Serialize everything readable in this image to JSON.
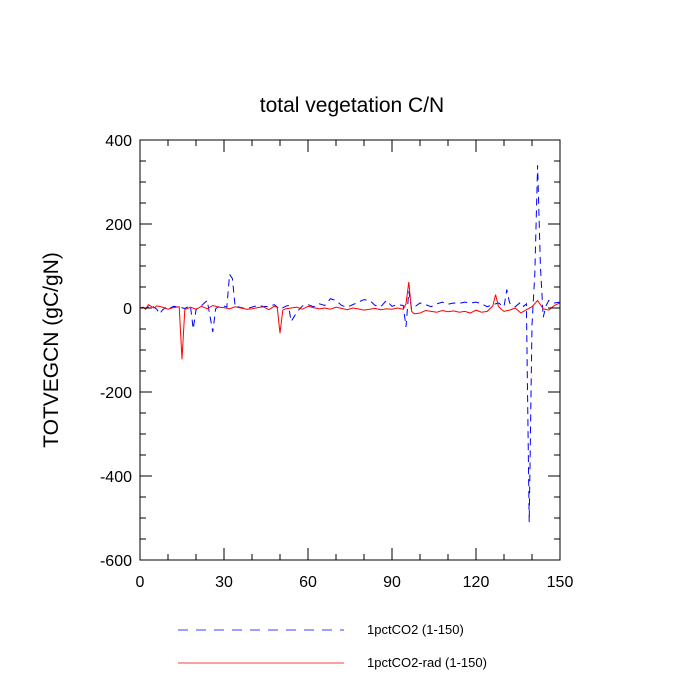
{
  "chart_data": {
    "type": "line",
    "title": "total vegetation C/N",
    "xlabel": "",
    "ylabel": "TOTVEGCN  (gC/gN)",
    "xlim": [
      0,
      150
    ],
    "ylim": [
      -600,
      400
    ],
    "xticks": [
      0,
      30,
      60,
      90,
      120,
      150
    ],
    "xtick_labels": [
      "0",
      "30",
      "60",
      "90",
      "120",
      "150"
    ],
    "yticks": [
      -600,
      -400,
      -200,
      0,
      200,
      400
    ],
    "ytick_labels": [
      "-600",
      "-400",
      "-200",
      "0",
      "200",
      "400"
    ],
    "grid": false,
    "legend_position": "bottom",
    "series": [
      {
        "name": "1pctCO2 (1-150)",
        "color": "#0000ff",
        "dash": "dashed",
        "x": [
          1,
          2,
          3,
          4,
          5,
          6,
          7,
          8,
          9,
          10,
          12,
          14,
          16,
          18,
          19,
          20,
          21,
          22,
          24,
          26,
          27,
          28,
          30,
          31,
          32,
          33,
          34,
          35,
          38,
          40,
          42,
          44,
          46,
          48,
          50,
          52,
          53,
          54,
          56,
          58,
          60,
          62,
          64,
          66,
          68,
          70,
          72,
          74,
          76,
          78,
          80,
          82,
          84,
          86,
          88,
          90,
          92,
          94,
          95,
          96,
          97,
          98,
          100,
          102,
          104,
          106,
          108,
          110,
          112,
          114,
          116,
          118,
          120,
          122,
          124,
          126,
          128,
          130,
          131,
          132,
          133,
          134,
          136,
          137,
          138,
          139,
          140,
          141,
          142,
          143,
          144,
          145,
          146,
          148,
          150
        ],
        "y": [
          2,
          -2,
          3,
          6,
          2,
          -3,
          -14,
          -5,
          1,
          -3,
          4,
          2,
          -1,
          6,
          -50,
          -5,
          3,
          6,
          18,
          -57,
          -2,
          3,
          5,
          2,
          80,
          70,
          2,
          3,
          -2,
          2,
          6,
          4,
          3,
          8,
          -3,
          4,
          6,
          -32,
          -10,
          5,
          8,
          3,
          10,
          6,
          22,
          18,
          6,
          2,
          8,
          14,
          20,
          18,
          6,
          3,
          18,
          4,
          8,
          6,
          -45,
          40,
          -3,
          2,
          12,
          8,
          3,
          10,
          14,
          9,
          12,
          11,
          14,
          12,
          14,
          10,
          3,
          8,
          12,
          3,
          44,
          12,
          8,
          3,
          14,
          4,
          10,
          -510,
          -40,
          80,
          340,
          100,
          -22,
          5,
          18,
          12,
          14
        ]
      },
      {
        "name": "1pctCO2-rad (1-150)",
        "color": "#ff0000",
        "dash": "solid",
        "x": [
          0,
          1,
          2,
          3,
          4,
          5,
          6,
          8,
          10,
          12,
          14,
          15,
          16,
          18,
          20,
          22,
          24,
          26,
          28,
          30,
          32,
          34,
          36,
          38,
          40,
          42,
          44,
          46,
          48,
          49,
          50,
          51,
          52,
          54,
          56,
          58,
          60,
          62,
          64,
          66,
          68,
          70,
          72,
          74,
          76,
          78,
          80,
          82,
          84,
          86,
          88,
          90,
          92,
          94,
          95,
          96,
          97,
          98,
          100,
          102,
          104,
          106,
          108,
          110,
          112,
          114,
          116,
          118,
          120,
          122,
          124,
          126,
          127,
          128,
          129,
          130,
          132,
          134,
          136,
          138,
          140,
          142,
          144,
          146,
          148,
          150
        ],
        "y": [
          0,
          2,
          -3,
          8,
          4,
          0,
          5,
          2,
          -3,
          1,
          3,
          -122,
          -4,
          2,
          -3,
          4,
          -2,
          6,
          2,
          1,
          -2,
          3,
          0,
          -3,
          -2,
          1,
          3,
          -4,
          4,
          2,
          -60,
          -5,
          -2,
          0,
          2,
          -3,
          4,
          1,
          -2,
          0,
          -3,
          2,
          -1,
          -4,
          0,
          -2,
          -5,
          -3,
          -1,
          -4,
          -2,
          -3,
          0,
          -3,
          10,
          62,
          -8,
          -14,
          -12,
          -6,
          -8,
          -10,
          -6,
          -9,
          -7,
          -10,
          -8,
          -12,
          -5,
          -10,
          -8,
          5,
          32,
          4,
          -3,
          -8,
          -5,
          0,
          -12,
          -4,
          3,
          18,
          -2,
          -5,
          6,
          12
        ]
      }
    ]
  }
}
